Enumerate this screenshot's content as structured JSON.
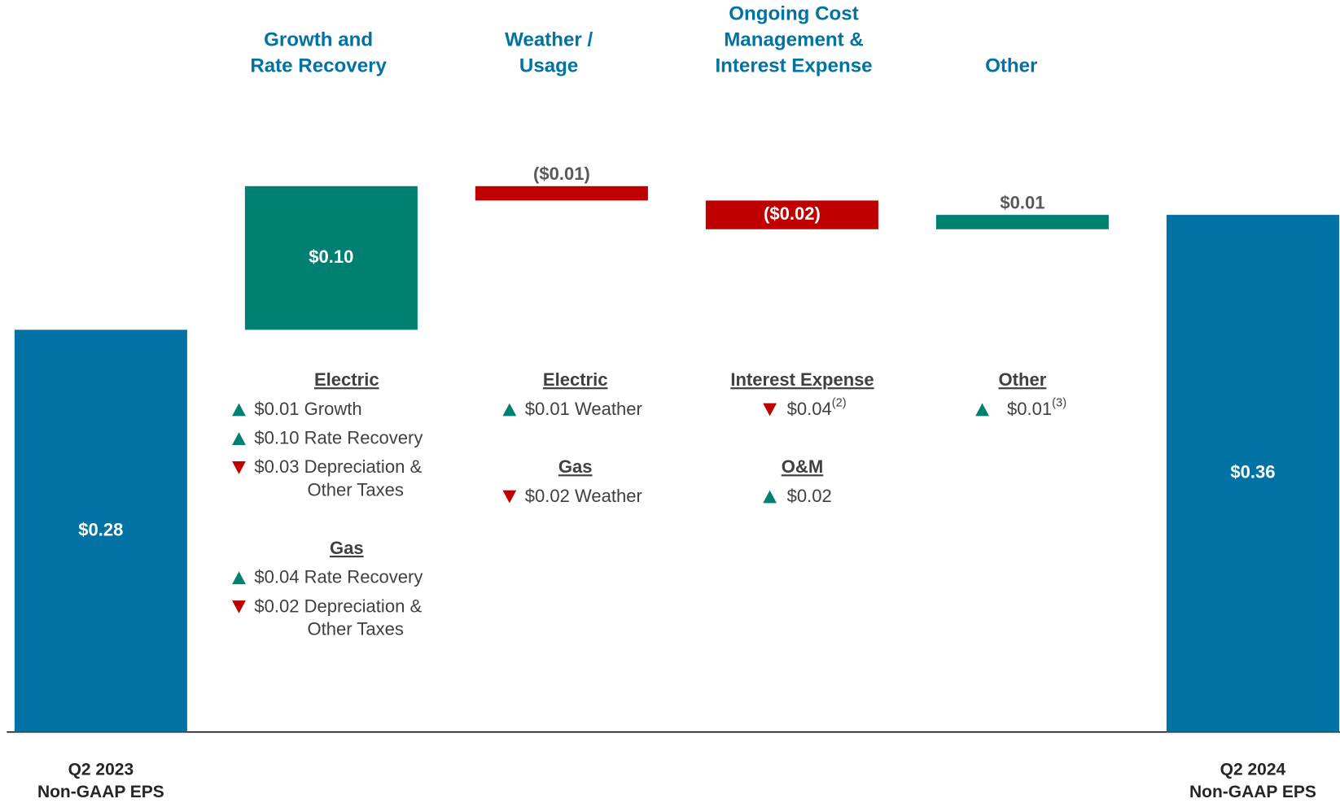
{
  "chart_data": {
    "type": "waterfall",
    "categories": [
      [
        "Q2 2023",
        "Non-GAAP EPS"
      ],
      [
        "Growth and",
        "Rate Recovery"
      ],
      [
        "Weather /",
        "Usage"
      ],
      [
        "Ongoing Cost",
        "Management &",
        "Interest Expense"
      ],
      [
        "Other"
      ],
      [
        "Q2 2024",
        "Non-GAAP EPS"
      ]
    ],
    "measures": [
      "absolute",
      "relative",
      "relative",
      "relative",
      "relative",
      "absolute"
    ],
    "values": [
      0.28,
      0.1,
      -0.01,
      -0.02,
      0.01,
      0.36
    ],
    "value_labels": [
      "$0.28",
      "$0.10",
      "($0.01)",
      "($0.02)",
      "$0.01",
      "$0.36"
    ],
    "colors": {
      "total": "#0072a3",
      "increase": "#008070",
      "decrease": "#c00000"
    },
    "ylim": [
      0,
      0.5
    ],
    "details": [
      {
        "column": 1,
        "groups": [
          {
            "heading": "Electric",
            "items": [
              {
                "direction": "up",
                "lines": [
                  "$0.01 Growth"
                ]
              },
              {
                "direction": "up",
                "lines": [
                  "$0.10 Rate Recovery"
                ]
              },
              {
                "direction": "down",
                "lines": [
                  "$0.03 Depreciation &",
                  "Other Taxes"
                ]
              }
            ]
          },
          {
            "heading": "Gas",
            "items": [
              {
                "direction": "up",
                "lines": [
                  "$0.04 Rate Recovery"
                ]
              },
              {
                "direction": "down",
                "lines": [
                  "$0.02 Depreciation &",
                  "Other Taxes"
                ]
              }
            ]
          }
        ]
      },
      {
        "column": 2,
        "groups": [
          {
            "heading": "Electric",
            "items": [
              {
                "direction": "up",
                "lines": [
                  "$0.01 Weather"
                ]
              }
            ]
          },
          {
            "heading": "Gas",
            "items": [
              {
                "direction": "down",
                "lines": [
                  "$0.02 Weather"
                ]
              }
            ]
          }
        ]
      },
      {
        "column": 3,
        "groups": [
          {
            "heading": "Interest Expense",
            "items": [
              {
                "direction": "down",
                "lines": [
                  "$0.04"
                ],
                "note": "(2)"
              }
            ]
          },
          {
            "heading": "O&M",
            "items": [
              {
                "direction": "up",
                "lines": [
                  "$0.02"
                ]
              }
            ]
          }
        ]
      },
      {
        "column": 4,
        "groups": [
          {
            "heading": "Other",
            "items": [
              {
                "direction": "up",
                "lines": [
                  "$0.01"
                ],
                "note": "(3)"
              }
            ]
          }
        ]
      }
    ]
  }
}
